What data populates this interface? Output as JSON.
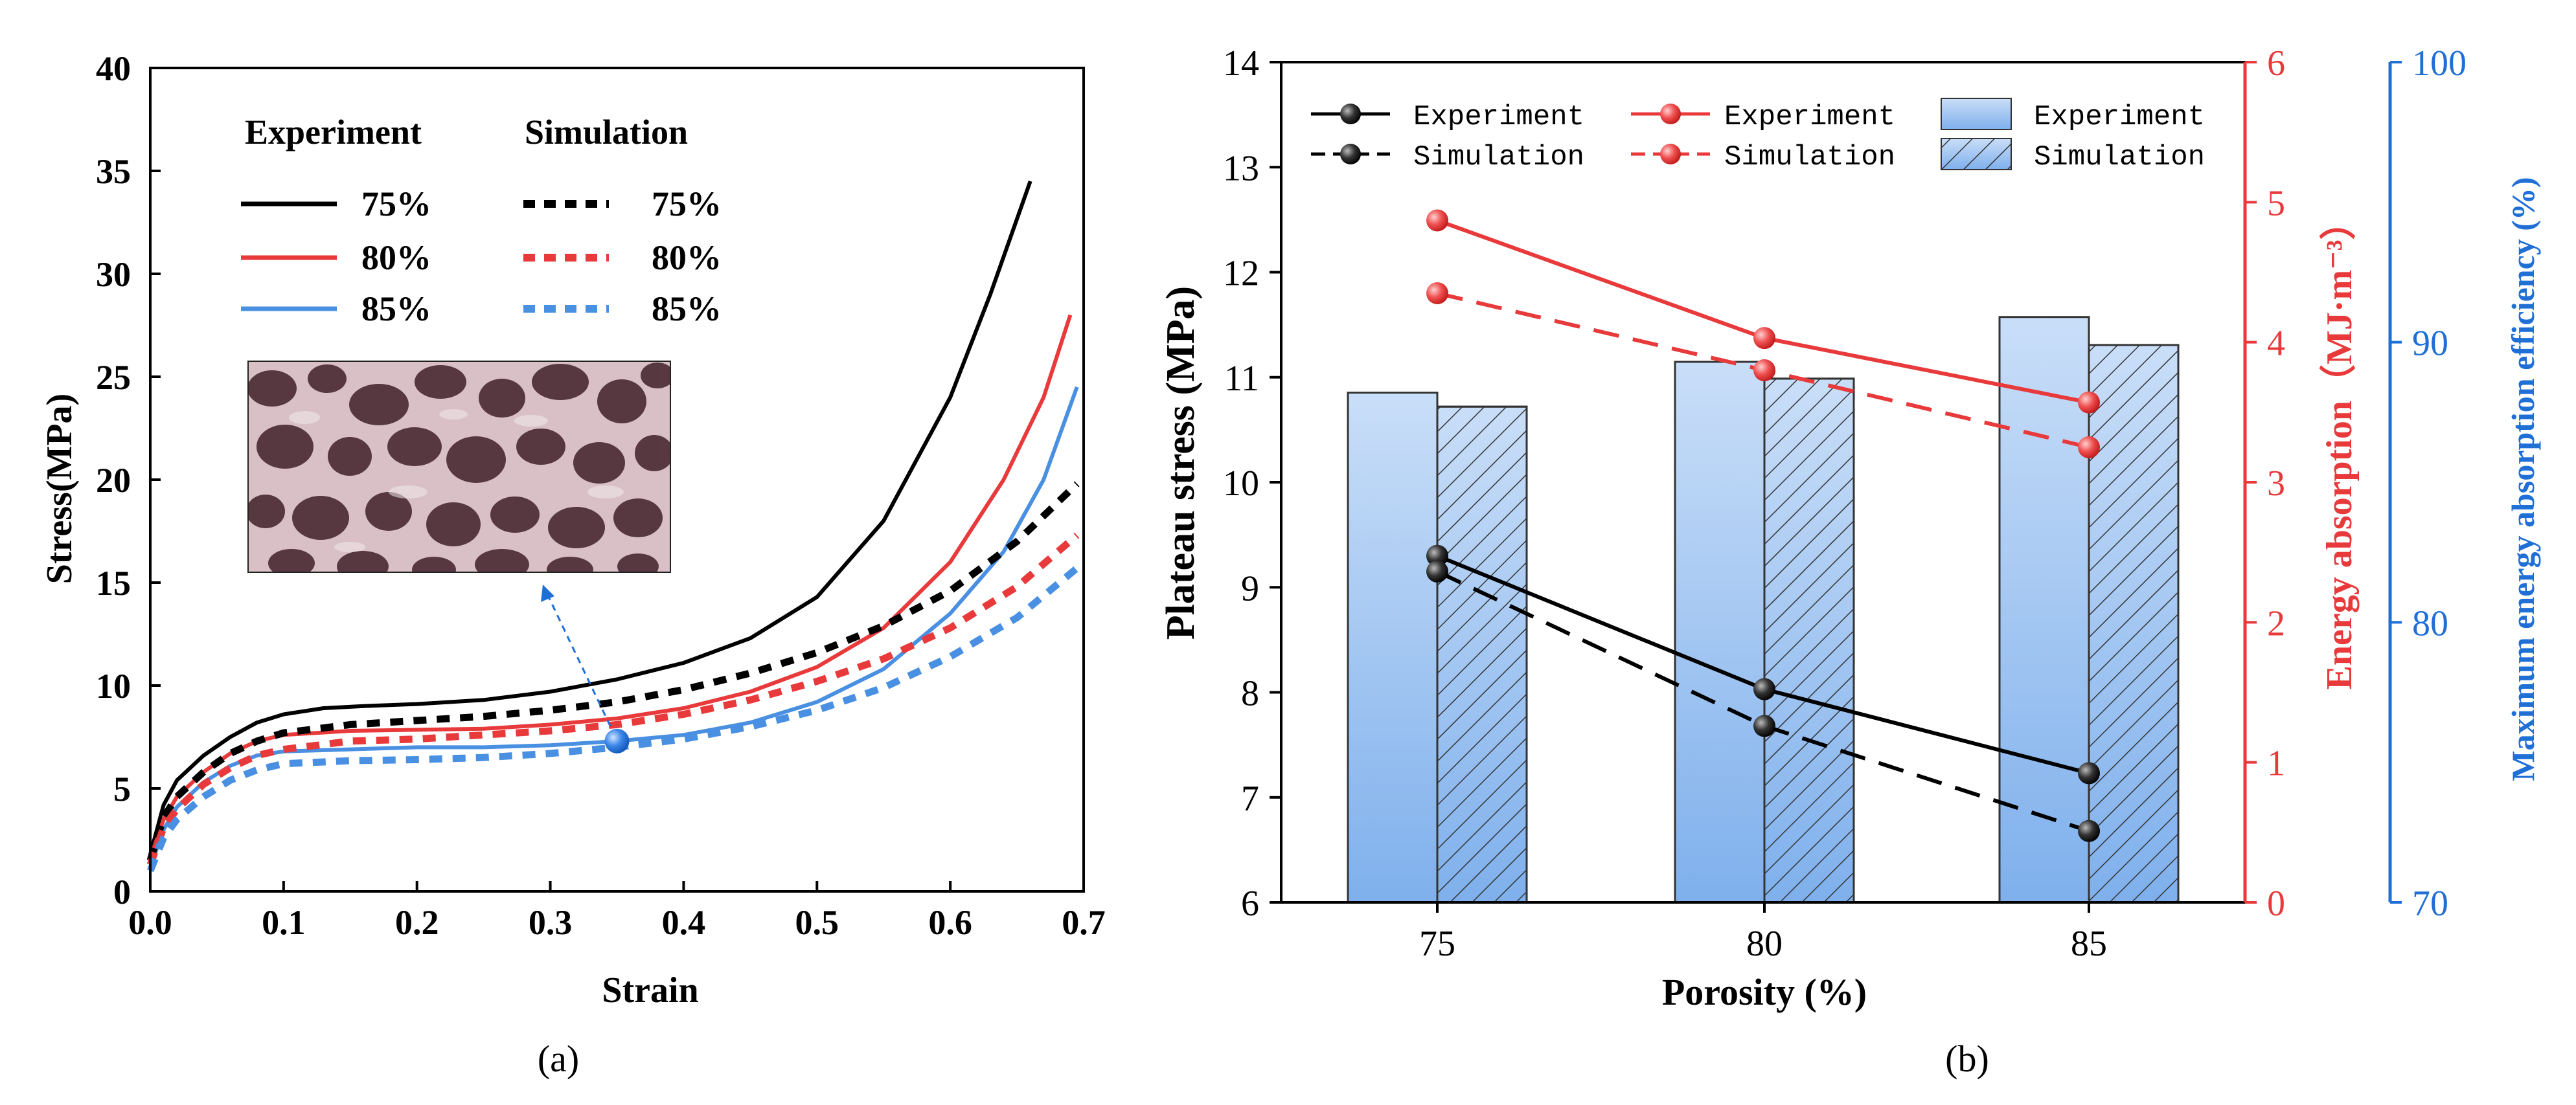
{
  "panel_labels": {
    "a": "(a)",
    "b": "(b)"
  },
  "chart_data": [
    {
      "type": "line",
      "panel": "(a)",
      "xlabel": "Strain",
      "ylabel": "Stress(MPa)",
      "xlim": [
        0.0,
        0.7
      ],
      "ylim": [
        0,
        40
      ],
      "xticks": [
        "0.0",
        "0.1",
        "0.2",
        "0.3",
        "0.4",
        "0.5",
        "0.6",
        "0.7"
      ],
      "yticks": [
        "0",
        "5",
        "10",
        "15",
        "20",
        "25",
        "30",
        "35",
        "40"
      ],
      "legend": {
        "placement": "top-left",
        "header_experiment": "Experiment",
        "header_simulation": "Simulation",
        "entries": [
          "75%",
          "80%",
          "85%"
        ]
      },
      "marker": {
        "x": 0.35,
        "y": 7.3,
        "color": "#1f6fd6"
      },
      "inset_caption": "",
      "series": [
        {
          "name": "Experiment 75%",
          "kind": "experiment",
          "color": "#000000",
          "dashed": false,
          "points": [
            [
              0,
              1.8
            ],
            [
              0.01,
              4.2
            ],
            [
              0.02,
              5.4
            ],
            [
              0.04,
              6.6
            ],
            [
              0.06,
              7.5
            ],
            [
              0.08,
              8.2
            ],
            [
              0.1,
              8.6
            ],
            [
              0.13,
              8.9
            ],
            [
              0.16,
              9.0
            ],
            [
              0.2,
              9.1
            ],
            [
              0.25,
              9.3
            ],
            [
              0.3,
              9.7
            ],
            [
              0.35,
              10.3
            ],
            [
              0.4,
              11.1
            ],
            [
              0.45,
              12.3
            ],
            [
              0.5,
              14.3
            ],
            [
              0.55,
              18.0
            ],
            [
              0.6,
              24.0
            ],
            [
              0.63,
              29.0
            ],
            [
              0.66,
              34.5
            ]
          ]
        },
        {
          "name": "Experiment 80%",
          "kind": "experiment",
          "color": "#e8393b",
          "dashed": false,
          "points": [
            [
              0,
              1.6
            ],
            [
              0.01,
              3.5
            ],
            [
              0.02,
              4.6
            ],
            [
              0.04,
              5.8
            ],
            [
              0.06,
              6.7
            ],
            [
              0.08,
              7.3
            ],
            [
              0.1,
              7.6
            ],
            [
              0.15,
              7.8
            ],
            [
              0.2,
              7.85
            ],
            [
              0.25,
              7.9
            ],
            [
              0.3,
              8.1
            ],
            [
              0.35,
              8.4
            ],
            [
              0.4,
              8.9
            ],
            [
              0.45,
              9.7
            ],
            [
              0.5,
              10.9
            ],
            [
              0.55,
              12.8
            ],
            [
              0.6,
              16.0
            ],
            [
              0.64,
              20.0
            ],
            [
              0.67,
              24.0
            ],
            [
              0.69,
              28.0
            ]
          ]
        },
        {
          "name": "Experiment 85%",
          "kind": "experiment",
          "color": "#4a90e2",
          "dashed": false,
          "points": [
            [
              0,
              1.2
            ],
            [
              0.01,
              3.0
            ],
            [
              0.02,
              4.1
            ],
            [
              0.04,
              5.3
            ],
            [
              0.06,
              6.1
            ],
            [
              0.08,
              6.6
            ],
            [
              0.1,
              6.8
            ],
            [
              0.15,
              6.9
            ],
            [
              0.2,
              7.0
            ],
            [
              0.25,
              7.0
            ],
            [
              0.3,
              7.1
            ],
            [
              0.35,
              7.3
            ],
            [
              0.4,
              7.6
            ],
            [
              0.45,
              8.2
            ],
            [
              0.5,
              9.2
            ],
            [
              0.55,
              10.8
            ],
            [
              0.6,
              13.5
            ],
            [
              0.64,
              16.5
            ],
            [
              0.67,
              20.0
            ],
            [
              0.695,
              24.5
            ]
          ]
        },
        {
          "name": "Simulation 75%",
          "kind": "simulation",
          "color": "#000000",
          "dashed": true,
          "points": [
            [
              0,
              1.5
            ],
            [
              0.01,
              3.6
            ],
            [
              0.02,
              4.6
            ],
            [
              0.04,
              5.8
            ],
            [
              0.06,
              6.7
            ],
            [
              0.08,
              7.3
            ],
            [
              0.1,
              7.7
            ],
            [
              0.15,
              8.1
            ],
            [
              0.2,
              8.3
            ],
            [
              0.25,
              8.5
            ],
            [
              0.3,
              8.8
            ],
            [
              0.35,
              9.2
            ],
            [
              0.4,
              9.8
            ],
            [
              0.45,
              10.6
            ],
            [
              0.5,
              11.6
            ],
            [
              0.55,
              12.9
            ],
            [
              0.6,
              14.6
            ],
            [
              0.65,
              17.0
            ],
            [
              0.695,
              19.8
            ]
          ]
        },
        {
          "name": "Simulation 80%",
          "kind": "simulation",
          "color": "#e8393b",
          "dashed": true,
          "points": [
            [
              0,
              1.3
            ],
            [
              0.01,
              3.1
            ],
            [
              0.02,
              4.0
            ],
            [
              0.04,
              5.2
            ],
            [
              0.06,
              6.0
            ],
            [
              0.08,
              6.6
            ],
            [
              0.1,
              6.9
            ],
            [
              0.15,
              7.3
            ],
            [
              0.2,
              7.4
            ],
            [
              0.25,
              7.6
            ],
            [
              0.3,
              7.8
            ],
            [
              0.35,
              8.1
            ],
            [
              0.4,
              8.6
            ],
            [
              0.45,
              9.3
            ],
            [
              0.5,
              10.2
            ],
            [
              0.55,
              11.3
            ],
            [
              0.6,
              12.8
            ],
            [
              0.65,
              14.8
            ],
            [
              0.695,
              17.3
            ]
          ]
        },
        {
          "name": "Simulation 85%",
          "kind": "simulation",
          "color": "#4a90e2",
          "dashed": true,
          "points": [
            [
              0,
              1.0
            ],
            [
              0.01,
              2.6
            ],
            [
              0.02,
              3.5
            ],
            [
              0.04,
              4.6
            ],
            [
              0.06,
              5.4
            ],
            [
              0.08,
              5.9
            ],
            [
              0.1,
              6.2
            ],
            [
              0.15,
              6.35
            ],
            [
              0.2,
              6.4
            ],
            [
              0.25,
              6.5
            ],
            [
              0.3,
              6.7
            ],
            [
              0.35,
              7.0
            ],
            [
              0.4,
              7.4
            ],
            [
              0.45,
              8.0
            ],
            [
              0.5,
              8.8
            ],
            [
              0.55,
              9.9
            ],
            [
              0.6,
              11.4
            ],
            [
              0.65,
              13.3
            ],
            [
              0.695,
              15.7
            ]
          ]
        }
      ]
    },
    {
      "type": "bar+line",
      "panel": "(b)",
      "xlabel": "Porosity (%)",
      "categories": [
        "75",
        "80",
        "85"
      ],
      "left_axis": {
        "label": "Plateau stress (MPa)",
        "ylim": [
          6,
          14
        ],
        "ticks": [
          "6",
          "7",
          "8",
          "9",
          "10",
          "11",
          "12",
          "13",
          "14"
        ],
        "color": "#000000"
      },
      "right_axis_1": {
        "label": "Energy absorption（MJ·m⁻³）",
        "ylim": [
          0,
          6
        ],
        "ticks": [
          "0",
          "1",
          "2",
          "3",
          "4",
          "5",
          "6"
        ],
        "color": "#e8393b"
      },
      "right_axis_2": {
        "label": "Maximum energy absorption efficiency (%)",
        "ylim": [
          70,
          100
        ],
        "ticks": [
          "70",
          "80",
          "90",
          "100"
        ],
        "color": "#1f6fd6"
      },
      "legend": {
        "placement": "top",
        "entries": [
          {
            "label": "Experiment",
            "kind": "line-solid",
            "color": "#000000"
          },
          {
            "label": "Simulation",
            "kind": "line-dashed",
            "color": "#000000"
          },
          {
            "label": "Experiment",
            "kind": "line-solid",
            "color": "#e8393b"
          },
          {
            "label": "Simulation",
            "kind": "line-dashed",
            "color": "#e8393b"
          },
          {
            "label": "Experiment",
            "kind": "bar-plain",
            "color": "#a9cbf3"
          },
          {
            "label": "Simulation",
            "kind": "bar-hatched",
            "color": "#a9cbf3"
          }
        ]
      },
      "series": [
        {
          "name": "Plateau stress Experiment",
          "axis": "left",
          "kind": "line-solid",
          "color": "#000000",
          "values": [
            9.3,
            8.03,
            7.23
          ]
        },
        {
          "name": "Plateau stress Simulation",
          "axis": "left",
          "kind": "line-dashed",
          "color": "#000000",
          "values": [
            9.15,
            7.68,
            6.68
          ]
        },
        {
          "name": "Energy absorption Experiment",
          "axis": "right_1",
          "kind": "line-solid",
          "color": "#e8393b",
          "values": [
            4.87,
            4.03,
            3.57
          ]
        },
        {
          "name": "Energy absorption Simulation",
          "axis": "right_1",
          "kind": "line-dashed",
          "color": "#e8393b",
          "values": [
            4.35,
            3.8,
            3.25
          ]
        },
        {
          "name": "Max energy absorption efficiency Experiment",
          "axis": "right_2",
          "kind": "bar-plain",
          "color": "#a9cbf3",
          "values": [
            88.2,
            89.3,
            90.9
          ]
        },
        {
          "name": "Max energy absorption efficiency Simulation",
          "axis": "right_2",
          "kind": "bar-hatched",
          "color": "#a9cbf3",
          "values": [
            87.7,
            88.7,
            89.9
          ]
        }
      ]
    }
  ]
}
